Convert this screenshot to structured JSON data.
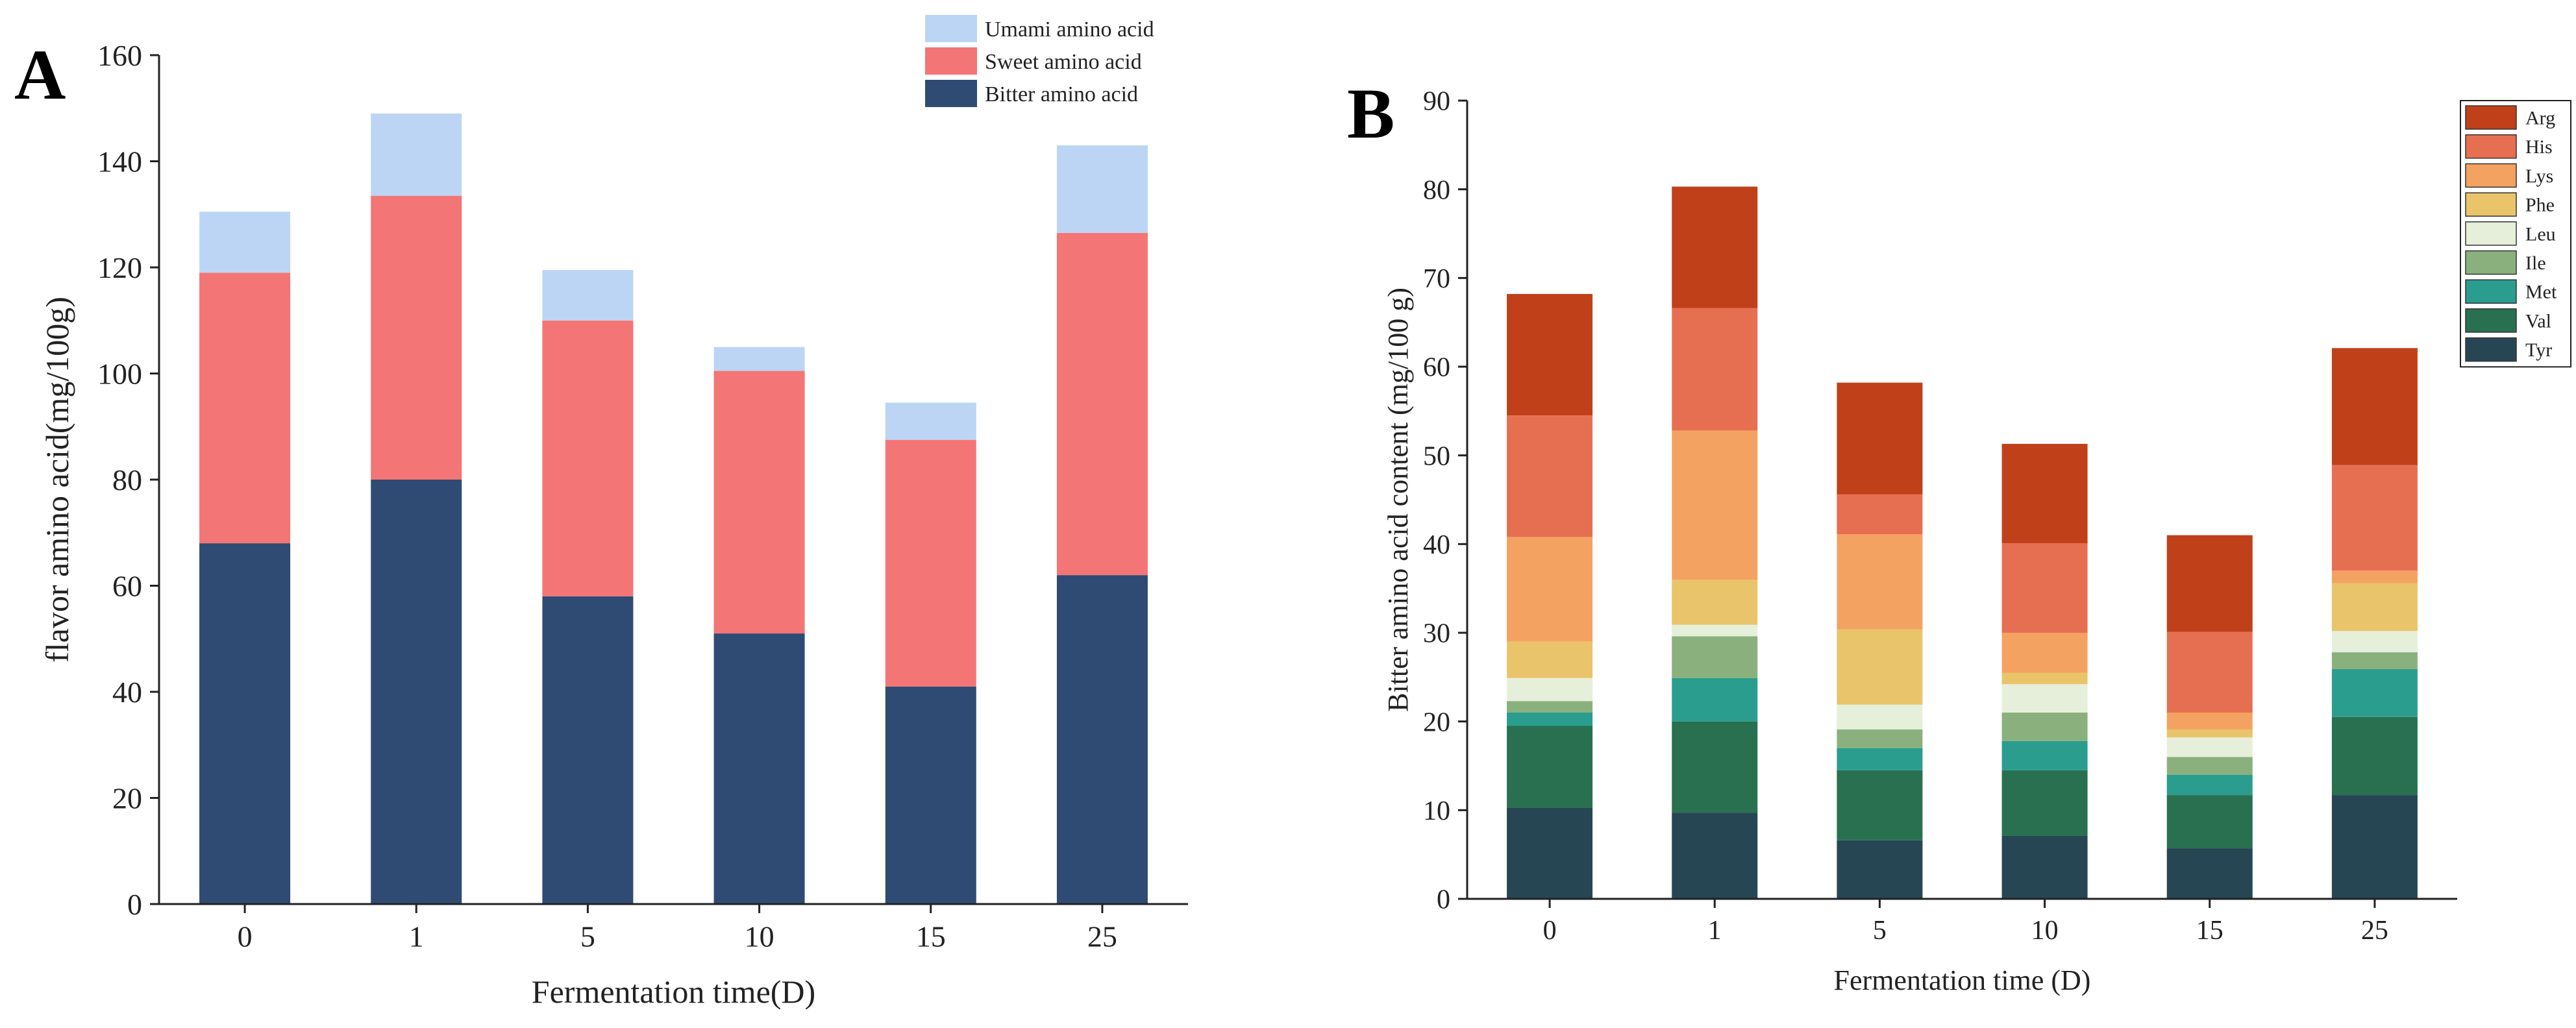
{
  "chart_data": [
    {
      "panel": "A",
      "type": "bar",
      "stacked": true,
      "categories": [
        "0",
        "1",
        "5",
        "10",
        "15",
        "25"
      ],
      "xlabel": "Fermentation time(D)",
      "ylabel": "flavor amino acid(mg/100g)",
      "ylim": [
        0,
        160
      ],
      "yticks": [
        0,
        20,
        40,
        60,
        80,
        100,
        120,
        140,
        160
      ],
      "legend_position": "top-right",
      "series": [
        {
          "name": "Bitter amino acid",
          "color": "#2f4b73",
          "values": [
            68,
            80,
            58,
            51,
            41,
            62
          ]
        },
        {
          "name": "Sweet amino acid",
          "color": "#f47575",
          "values": [
            51,
            53.5,
            52,
            49.5,
            46.5,
            64.5
          ]
        },
        {
          "name": "Umami amino acid",
          "color": "#bcd5f5",
          "values": [
            11.5,
            15.5,
            9.5,
            4.5,
            7,
            16.5
          ]
        }
      ]
    },
    {
      "panel": "B",
      "type": "bar",
      "stacked": true,
      "categories": [
        "0",
        "1",
        "5",
        "10",
        "15",
        "25"
      ],
      "xlabel": "Fermentation time (D)",
      "ylabel": "Bitter amino acid content (mg/100 g)",
      "ylim": [
        0,
        90
      ],
      "yticks": [
        0,
        10,
        20,
        30,
        40,
        50,
        60,
        70,
        80,
        90
      ],
      "legend_position": "top-right",
      "series": [
        {
          "name": "Tyr",
          "color": "#264653",
          "values": [
            10.3,
            9.7,
            6.6,
            7.1,
            5.7,
            11.7
          ]
        },
        {
          "name": "Val",
          "color": "#287050",
          "values": [
            9.2,
            10.3,
            7.9,
            7.4,
            6,
            8.8
          ]
        },
        {
          "name": "Met",
          "color": "#2a9d8f",
          "values": [
            1.5,
            4.9,
            2.5,
            3.3,
            2.3,
            5.4
          ]
        },
        {
          "name": "Ile",
          "color": "#8ab17d",
          "values": [
            1.3,
            4.7,
            2.1,
            3.2,
            2,
            1.9
          ]
        },
        {
          "name": "Leu",
          "color": "#e6efd9",
          "values": [
            2.6,
            1.3,
            2.8,
            3.2,
            2.2,
            2.4
          ]
        },
        {
          "name": "Phe",
          "color": "#e9c46a",
          "values": [
            4.1,
            5.1,
            8.5,
            1.3,
            0.9,
            5.4
          ]
        },
        {
          "name": "Lys",
          "color": "#f4a261",
          "values": [
            11.8,
            16.8,
            10.7,
            4.5,
            1.9,
            1.4
          ]
        },
        {
          "name": "His",
          "color": "#e76f51",
          "values": [
            13.7,
            13.8,
            4.5,
            10.1,
            9.1,
            11.9
          ]
        },
        {
          "name": "Arg",
          "color": "#c0401a",
          "values": [
            13.7,
            13.7,
            12.6,
            11.2,
            10.9,
            13.2
          ]
        }
      ]
    }
  ],
  "panel_labels": {
    "a": "A",
    "b": "B"
  }
}
